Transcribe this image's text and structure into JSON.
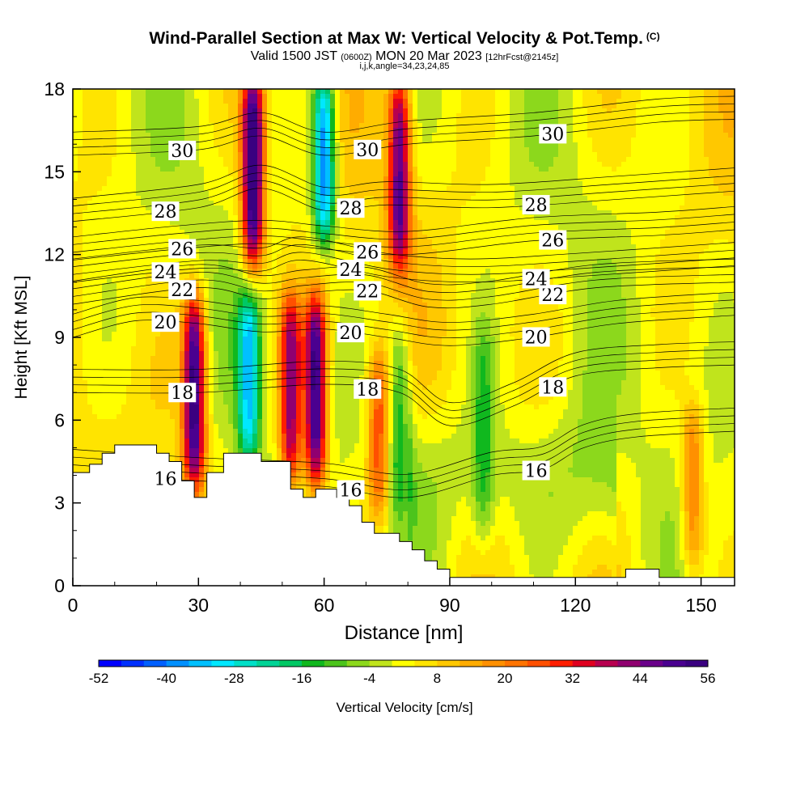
{
  "header": {
    "title": "Wind-Parallel Section at Max W: Vertical Velocity & Pot.Temp.",
    "title_tag": "(C)",
    "valid_prefix": "Valid 1500 JST",
    "valid_utc": "(0600Z)",
    "valid_date": "MON 20 Mar 2023",
    "forecast": "[12hrFcst@2145z]",
    "indices": "i,j,k,angle=34,23,24,85"
  },
  "chart_data": {
    "type": "heatmap",
    "xlabel": "Distance [nm]",
    "ylabel": "Height [Kft MSL]",
    "xlim": [
      0,
      158
    ],
    "ylim": [
      0,
      18
    ],
    "x_ticks": [
      0,
      30,
      60,
      90,
      120,
      150
    ],
    "y_ticks": [
      0,
      3,
      6,
      9,
      12,
      15,
      18
    ],
    "colorbar": {
      "label": "Vertical Velocity [cm/s]",
      "min": -52,
      "max": 56,
      "step": 4,
      "tick_labels": [
        -52,
        -40,
        -28,
        -16,
        -4,
        8,
        20,
        32,
        44,
        56
      ],
      "colors": [
        "#0000ff",
        "#0030ff",
        "#0060ff",
        "#0090ff",
        "#00c0ff",
        "#00e8ff",
        "#00e0c8",
        "#00d496",
        "#00c864",
        "#10b81e",
        "#4cc41c",
        "#8cd81c",
        "#c0e41c",
        "#ffff00",
        "#ffe400",
        "#ffc800",
        "#ffac00",
        "#ff9000",
        "#ff7400",
        "#ff5000",
        "#ff1e00",
        "#e00020",
        "#b80050",
        "#900070",
        "#6a008a",
        "#4a0090",
        "#3a0080"
      ]
    },
    "vertical_velocity_features": [
      {
        "x": 43,
        "y_range": [
          12,
          18
        ],
        "w": 56,
        "sign": "updraft"
      },
      {
        "x": 60,
        "y_range": [
          13,
          18
        ],
        "w": -44,
        "sign": "downdraft"
      },
      {
        "x": 78,
        "y_range": [
          12,
          18
        ],
        "w": 44,
        "sign": "updraft"
      },
      {
        "x": 29,
        "y_range": [
          4,
          10
        ],
        "w": 52,
        "sign": "updraft"
      },
      {
        "x": 42,
        "y_range": [
          5,
          10
        ],
        "w": -32,
        "sign": "downdraft"
      },
      {
        "x": 52,
        "y_range": [
          4,
          10
        ],
        "w": 40,
        "sign": "updraft"
      },
      {
        "x": 58,
        "y_range": [
          4,
          10
        ],
        "w": 52,
        "sign": "updraft"
      },
      {
        "x": 73,
        "y_range": [
          3,
          8
        ],
        "w": 24,
        "sign": "updraft"
      },
      {
        "x": 78,
        "y_range": [
          3,
          9
        ],
        "w": -20,
        "sign": "downdraft"
      },
      {
        "x": 98,
        "y_range": [
          2,
          9
        ],
        "w": -14,
        "sign": "downdraft"
      },
      {
        "x": 148,
        "y_range": [
          1,
          6
        ],
        "w": 20,
        "sign": "updraft"
      }
    ],
    "potential_temperature_contours": [
      {
        "value": 16,
        "label": "16",
        "points": [
          [
            0,
            4.1
          ],
          [
            30,
            3.8
          ],
          [
            60,
            3.6
          ],
          [
            80,
            3.2
          ],
          [
            100,
            4.0
          ],
          [
            112,
            4.2
          ],
          [
            122,
            5.0
          ],
          [
            135,
            5.4
          ],
          [
            158,
            5.6
          ]
        ]
      },
      {
        "value": 18,
        "label": "18",
        "points": [
          [
            0,
            7.0
          ],
          [
            30,
            7.0
          ],
          [
            60,
            7.3
          ],
          [
            78,
            7.0
          ],
          [
            90,
            5.8
          ],
          [
            105,
            6.5
          ],
          [
            120,
            7.6
          ],
          [
            140,
            7.9
          ],
          [
            158,
            8.0
          ]
        ]
      },
      {
        "value": 20,
        "label": "20",
        "points": [
          [
            0,
            9.0
          ],
          [
            15,
            9.6
          ],
          [
            30,
            9.5
          ],
          [
            45,
            9.2
          ],
          [
            60,
            9.3
          ],
          [
            75,
            9.0
          ],
          [
            90,
            8.7
          ],
          [
            110,
            9.0
          ],
          [
            130,
            9.5
          ],
          [
            158,
            9.8
          ]
        ]
      },
      {
        "value": 22,
        "label": "22",
        "points": [
          [
            0,
            10.2
          ],
          [
            30,
            10.8
          ],
          [
            45,
            10.4
          ],
          [
            55,
            10.6
          ],
          [
            70,
            10.7
          ],
          [
            85,
            10.1
          ],
          [
            100,
            10.2
          ],
          [
            125,
            10.8
          ],
          [
            158,
            11.0
          ]
        ]
      },
      {
        "value": 24,
        "label": "24",
        "points": [
          [
            0,
            11.0
          ],
          [
            30,
            11.5
          ],
          [
            45,
            11.4
          ],
          [
            55,
            11.8
          ],
          [
            75,
            11.2
          ],
          [
            95,
            11.0
          ],
          [
            120,
            11.2
          ],
          [
            158,
            11.6
          ]
        ]
      },
      {
        "value": 26,
        "label": "26",
        "points": [
          [
            0,
            11.8
          ],
          [
            25,
            12.2
          ],
          [
            45,
            12.4
          ],
          [
            60,
            12.2
          ],
          [
            80,
            12.0
          ],
          [
            110,
            12.5
          ],
          [
            140,
            12.7
          ],
          [
            158,
            12.9
          ]
        ]
      },
      {
        "value": 28,
        "label": "28",
        "points": [
          [
            0,
            13.2
          ],
          [
            30,
            13.7
          ],
          [
            45,
            14.4
          ],
          [
            60,
            13.6
          ],
          [
            75,
            13.8
          ],
          [
            100,
            13.7
          ],
          [
            130,
            14.0
          ],
          [
            158,
            14.3
          ]
        ]
      },
      {
        "value": 30,
        "label": "30",
        "points": [
          [
            0,
            15.6
          ],
          [
            30,
            15.8
          ],
          [
            45,
            16.3
          ],
          [
            60,
            15.6
          ],
          [
            80,
            16.0
          ],
          [
            110,
            16.3
          ],
          [
            140,
            16.8
          ],
          [
            158,
            16.9
          ]
        ]
      }
    ],
    "terrain": [
      [
        0,
        4.1
      ],
      [
        4,
        4.1
      ],
      [
        4,
        4.4
      ],
      [
        7,
        4.4
      ],
      [
        7,
        4.8
      ],
      [
        10,
        4.8
      ],
      [
        10,
        5.1
      ],
      [
        20,
        5.1
      ],
      [
        20,
        4.8
      ],
      [
        23,
        4.8
      ],
      [
        23,
        4.5
      ],
      [
        26,
        4.5
      ],
      [
        26,
        3.8
      ],
      [
        29,
        3.8
      ],
      [
        29,
        3.2
      ],
      [
        32,
        3.2
      ],
      [
        32,
        4.1
      ],
      [
        36,
        4.1
      ],
      [
        36,
        4.8
      ],
      [
        45,
        4.8
      ],
      [
        45,
        4.5
      ],
      [
        52,
        4.5
      ],
      [
        52,
        3.5
      ],
      [
        55,
        3.5
      ],
      [
        55,
        3.2
      ],
      [
        58,
        3.2
      ],
      [
        58,
        3.5
      ],
      [
        63,
        3.5
      ],
      [
        63,
        3.2
      ],
      [
        66,
        3.2
      ],
      [
        66,
        2.9
      ],
      [
        69,
        2.9
      ],
      [
        69,
        2.3
      ],
      [
        72,
        2.3
      ],
      [
        72,
        1.9
      ],
      [
        78,
        1.9
      ],
      [
        78,
        1.6
      ],
      [
        81,
        1.6
      ],
      [
        81,
        1.3
      ],
      [
        84,
        1.3
      ],
      [
        84,
        0.9
      ],
      [
        87,
        0.9
      ],
      [
        87,
        0.6
      ],
      [
        90,
        0.6
      ],
      [
        90,
        0.3
      ],
      [
        132,
        0.3
      ],
      [
        132,
        0.6
      ],
      [
        140,
        0.6
      ],
      [
        140,
        0.3
      ],
      [
        158,
        0.3
      ]
    ]
  }
}
